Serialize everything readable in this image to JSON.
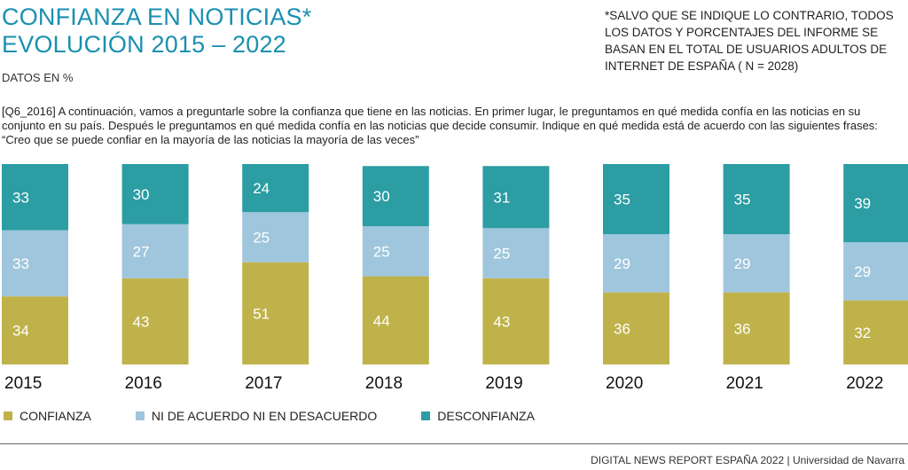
{
  "header": {
    "title_line1": "CONFIANZA EN NOTICIAS*",
    "title_line2": "EVOLUCIÓN 2015 – 2022",
    "subtitle": "DATOS EN %",
    "note": "*SALVO QUE SE INDIQUE LO CONTRARIO, TODOS LOS DATOS Y PORCENTAJES DEL INFORME SE BASAN EN EL TOTAL DE USUARIOS ADULTOS DE INTERNET DE ESPAÑA ( N = 2028)"
  },
  "question": "[Q6_2016] A continuación, vamos a preguntarle sobre la confianza que tiene en las noticias. En primer lugar, le preguntamos en qué medida confía en las noticias en su conjunto en su país. Después le preguntamos en qué medida confía en las noticias que decide consumir. Indique en qué medida está de acuerdo con las siguientes frases: “Creo que se puede confiar en la mayoría de las noticias la mayoría de las veces”",
  "chart_data": {
    "type": "bar",
    "stacked": true,
    "orientation": "vertical",
    "title": "CONFIANZA EN NOTICIAS* EVOLUCIÓN 2015 – 2022",
    "subtitle": "DATOS EN %",
    "xlabel": "",
    "ylabel": "",
    "ylim": [
      0,
      100
    ],
    "grid": false,
    "legend_position": "bottom-left",
    "categories": [
      "2015",
      "2016",
      "2017",
      "2018",
      "2019",
      "2020",
      "2021",
      "2022"
    ],
    "series": [
      {
        "name": "CONFIANZA",
        "color": "#c0b24b",
        "values": [
          34,
          43,
          51,
          44,
          43,
          36,
          36,
          32
        ]
      },
      {
        "name": "NI DE ACUERDO NI EN DESACUERDO",
        "color": "#9fc6dc",
        "values": [
          33,
          27,
          25,
          25,
          25,
          29,
          29,
          29
        ]
      },
      {
        "name": "DESCONFIANZA",
        "color": "#2b9da3",
        "values": [
          33,
          30,
          24,
          30,
          31,
          35,
          35,
          39
        ]
      }
    ]
  },
  "footer": {
    "report": "DIGITAL NEWS REPORT ESPAÑA 2022 | Universidad de Navarra"
  }
}
